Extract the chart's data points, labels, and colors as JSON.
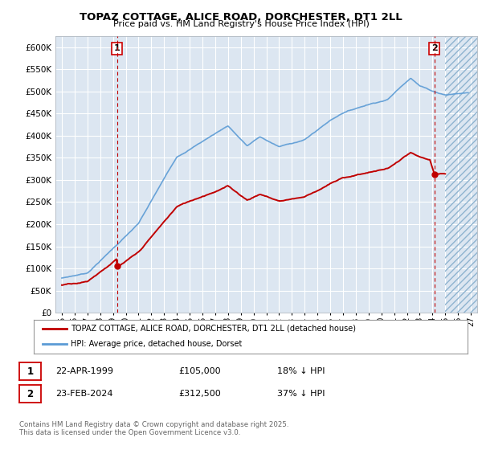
{
  "title": "TOPAZ COTTAGE, ALICE ROAD, DORCHESTER, DT1 2LL",
  "subtitle": "Price paid vs. HM Land Registry's House Price Index (HPI)",
  "xlim": [
    1994.5,
    2027.5
  ],
  "ylim": [
    0,
    625000
  ],
  "yticks": [
    0,
    50000,
    100000,
    150000,
    200000,
    250000,
    300000,
    350000,
    400000,
    450000,
    500000,
    550000,
    600000
  ],
  "ytick_labels": [
    "£0",
    "£50K",
    "£100K",
    "£150K",
    "£200K",
    "£250K",
    "£300K",
    "£350K",
    "£400K",
    "£450K",
    "£500K",
    "£550K",
    "£600K"
  ],
  "xticks": [
    1995,
    1996,
    1997,
    1998,
    1999,
    2000,
    2001,
    2002,
    2003,
    2004,
    2005,
    2006,
    2007,
    2008,
    2009,
    2010,
    2011,
    2012,
    2013,
    2014,
    2015,
    2016,
    2017,
    2018,
    2019,
    2020,
    2021,
    2022,
    2023,
    2024,
    2025,
    2026,
    2027
  ],
  "background_color": "#dce6f1",
  "grid_color": "#ffffff",
  "hpi_color": "#5b9bd5",
  "price_color": "#c00000",
  "marker1_year": 1999.31,
  "marker1_price": 105000,
  "marker2_year": 2024.15,
  "marker2_price": 312500,
  "legend_line1": "TOPAZ COTTAGE, ALICE ROAD, DORCHESTER, DT1 2LL (detached house)",
  "legend_line2": "HPI: Average price, detached house, Dorset",
  "table_row1": [
    "1",
    "22-APR-1999",
    "£105,000",
    "18% ↓ HPI"
  ],
  "table_row2": [
    "2",
    "23-FEB-2024",
    "£312,500",
    "37% ↓ HPI"
  ],
  "footnote": "Contains HM Land Registry data © Crown copyright and database right 2025.\nThis data is licensed under the Open Government Licence v3.0.",
  "future_start": 2025.0
}
